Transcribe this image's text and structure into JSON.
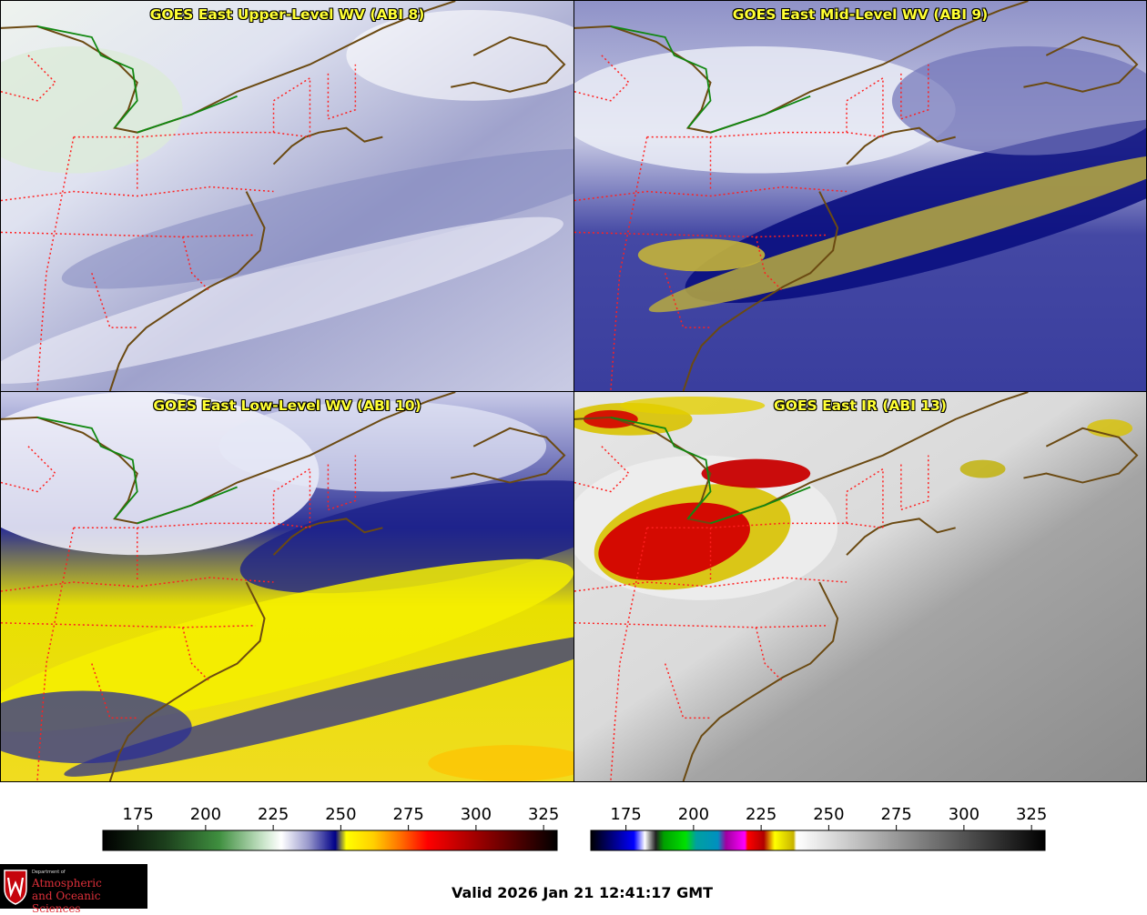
{
  "panels": [
    {
      "id": "upper",
      "title": "GOES East Upper-Level WV (ABI 8)"
    },
    {
      "id": "mid",
      "title": "GOES East Mid-Level WV (ABI 9)"
    },
    {
      "id": "low",
      "title": "GOES East Low-Level WV (ABI 10)"
    },
    {
      "id": "ir",
      "title": "GOES East IR (ABI 13)"
    }
  ],
  "colorbars": {
    "wv": {
      "ticks": [
        "175",
        "200",
        "225",
        "250",
        "275",
        "300",
        "325"
      ],
      "tick_values": [
        175,
        200,
        225,
        250,
        275,
        300,
        325
      ],
      "range": [
        162,
        330
      ],
      "stops": [
        {
          "value": 162,
          "color": "#000000"
        },
        {
          "value": 185,
          "color": "#1c3f1c"
        },
        {
          "value": 205,
          "color": "#3f8f3f"
        },
        {
          "value": 222,
          "color": "#cfe8cf"
        },
        {
          "value": 228,
          "color": "#ffffff"
        },
        {
          "value": 238,
          "color": "#9999cc"
        },
        {
          "value": 248,
          "color": "#000088"
        },
        {
          "value": 252,
          "color": "#ffff00"
        },
        {
          "value": 262,
          "color": "#ffd000"
        },
        {
          "value": 272,
          "color": "#ff7000"
        },
        {
          "value": 282,
          "color": "#ff0000"
        },
        {
          "value": 300,
          "color": "#a00000"
        },
        {
          "value": 330,
          "color": "#000000"
        }
      ]
    },
    "ir": {
      "ticks": [
        "175",
        "200",
        "225",
        "250",
        "275",
        "300",
        "325"
      ],
      "tick_values": [
        175,
        200,
        225,
        250,
        275,
        300,
        325
      ],
      "range": [
        162,
        330
      ],
      "stops": [
        {
          "value": 162,
          "color": "#000000"
        },
        {
          "value": 170,
          "color": "#000080"
        },
        {
          "value": 178,
          "color": "#0000ff"
        },
        {
          "value": 182,
          "color": "#ffffff"
        },
        {
          "value": 186,
          "color": "#222222"
        },
        {
          "value": 189,
          "color": "#00a000"
        },
        {
          "value": 197,
          "color": "#00e000"
        },
        {
          "value": 201,
          "color": "#00a0a0"
        },
        {
          "value": 209,
          "color": "#0090c0"
        },
        {
          "value": 212,
          "color": "#a000a0"
        },
        {
          "value": 219,
          "color": "#ff00ff"
        },
        {
          "value": 220,
          "color": "#ff0000"
        },
        {
          "value": 226,
          "color": "#b00000"
        },
        {
          "value": 230,
          "color": "#ffff00"
        },
        {
          "value": 237,
          "color": "#c8b400"
        },
        {
          "value": 238,
          "color": "#ffffff"
        },
        {
          "value": 330,
          "color": "#000000"
        }
      ]
    }
  },
  "logo": {
    "dept": "Department of",
    "line1": "Atmospheric",
    "line2": "and Oceanic Sciences"
  },
  "valid_time": "Valid 2026 Jan 21 12:41:17 GMT",
  "colors": {
    "coast": "#6b4a12",
    "state_border": "#ff2020",
    "intl_border": "#118811",
    "title": "#ffff33"
  }
}
